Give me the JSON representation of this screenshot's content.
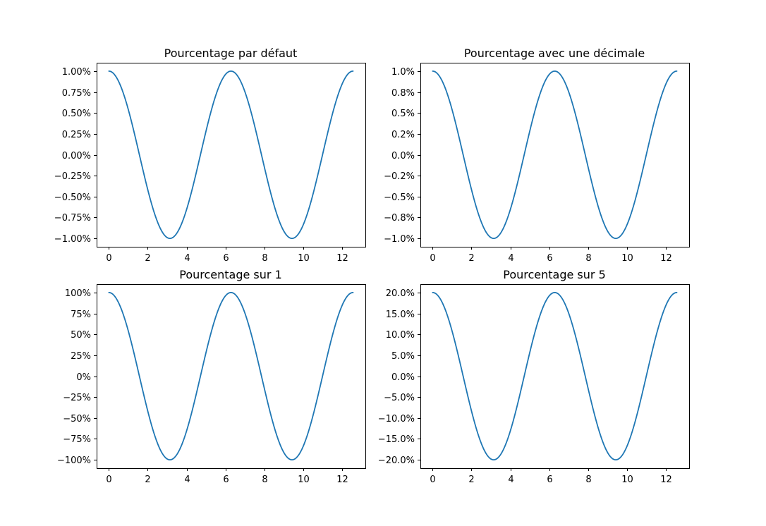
{
  "colors": {
    "series": "#1f77b4",
    "axis": "#000000",
    "background": "#ffffff"
  },
  "chart_data": [
    {
      "type": "line",
      "title": "Pourcentage par défaut",
      "xlabel": "",
      "ylabel": "",
      "xlim": [
        -0.63,
        13.2
      ],
      "ylim": [
        -1.1,
        1.1
      ],
      "x_ticks": [
        0,
        2,
        4,
        6,
        8,
        10,
        12
      ],
      "x_tick_labels": [
        "0",
        "2",
        "4",
        "6",
        "8",
        "10",
        "12"
      ],
      "y_ticks": [
        1.0,
        0.75,
        0.5,
        0.25,
        0.0,
        -0.25,
        -0.5,
        -0.75,
        -1.0
      ],
      "y_tick_labels": [
        "1.00%",
        "0.75%",
        "0.50%",
        "0.25%",
        "0.00%",
        "−0.25%",
        "−0.50%",
        "−0.75%",
        "−1.00%"
      ],
      "grid": false,
      "series": [
        {
          "function": "cos",
          "amplitude": 1,
          "x_range": [
            0,
            12.566
          ],
          "x": [
            0,
            1.571,
            3.142,
            4.712,
            6.283,
            7.854,
            9.425,
            10.996,
            12.566
          ],
          "y": [
            1,
            0,
            -1,
            0,
            1,
            0,
            -1,
            0,
            1
          ]
        }
      ]
    },
    {
      "type": "line",
      "title": "Pourcentage avec une décimale",
      "xlabel": "",
      "ylabel": "",
      "xlim": [
        -0.63,
        13.2
      ],
      "ylim": [
        -1.1,
        1.1
      ],
      "x_ticks": [
        0,
        2,
        4,
        6,
        8,
        10,
        12
      ],
      "x_tick_labels": [
        "0",
        "2",
        "4",
        "6",
        "8",
        "10",
        "12"
      ],
      "y_ticks": [
        1.0,
        0.75,
        0.5,
        0.25,
        0.0,
        -0.25,
        -0.5,
        -0.75,
        -1.0
      ],
      "y_tick_labels": [
        "1.0%",
        "0.8%",
        "0.5%",
        "0.2%",
        "0.0%",
        "−0.2%",
        "−0.5%",
        "−0.8%",
        "−1.0%"
      ],
      "grid": false,
      "series": [
        {
          "function": "cos",
          "amplitude": 1,
          "x_range": [
            0,
            12.566
          ],
          "x": [
            0,
            1.571,
            3.142,
            4.712,
            6.283,
            7.854,
            9.425,
            10.996,
            12.566
          ],
          "y": [
            1,
            0,
            -1,
            0,
            1,
            0,
            -1,
            0,
            1
          ]
        }
      ]
    },
    {
      "type": "line",
      "title": "Pourcentage sur 1",
      "xlabel": "",
      "ylabel": "",
      "xlim": [
        -0.63,
        13.2
      ],
      "ylim": [
        -1.1,
        1.1
      ],
      "x_ticks": [
        0,
        2,
        4,
        6,
        8,
        10,
        12
      ],
      "x_tick_labels": [
        "0",
        "2",
        "4",
        "6",
        "8",
        "10",
        "12"
      ],
      "y_ticks": [
        1.0,
        0.75,
        0.5,
        0.25,
        0.0,
        -0.25,
        -0.5,
        -0.75,
        -1.0
      ],
      "y_tick_labels": [
        "100%",
        "75%",
        "50%",
        "25%",
        "0%",
        "−25%",
        "−50%",
        "−75%",
        "−100%"
      ],
      "grid": false,
      "series": [
        {
          "function": "cos",
          "amplitude": 1,
          "x_range": [
            0,
            12.566
          ],
          "x": [
            0,
            1.571,
            3.142,
            4.712,
            6.283,
            7.854,
            9.425,
            10.996,
            12.566
          ],
          "y": [
            1,
            0,
            -1,
            0,
            1,
            0,
            -1,
            0,
            1
          ]
        }
      ]
    },
    {
      "type": "line",
      "title": "Pourcentage sur 5",
      "xlabel": "",
      "ylabel": "",
      "xlim": [
        -0.63,
        13.2
      ],
      "ylim": [
        -1.1,
        1.1
      ],
      "x_ticks": [
        0,
        2,
        4,
        6,
        8,
        10,
        12
      ],
      "x_tick_labels": [
        "0",
        "2",
        "4",
        "6",
        "8",
        "10",
        "12"
      ],
      "y_ticks": [
        1.0,
        0.75,
        0.5,
        0.25,
        0.0,
        -0.25,
        -0.5,
        -0.75,
        -1.0
      ],
      "y_tick_labels": [
        "20.0%",
        "15.0%",
        "10.0%",
        "5.0%",
        "0.0%",
        "−5.0%",
        "−10.0%",
        "−15.0%",
        "−20.0%"
      ],
      "grid": false,
      "series": [
        {
          "function": "cos",
          "amplitude": 1,
          "x_range": [
            0,
            12.566
          ],
          "x": [
            0,
            1.571,
            3.142,
            4.712,
            6.283,
            7.854,
            9.425,
            10.996,
            12.566
          ],
          "y": [
            1,
            0,
            -1,
            0,
            1,
            0,
            -1,
            0,
            1
          ]
        }
      ]
    }
  ]
}
